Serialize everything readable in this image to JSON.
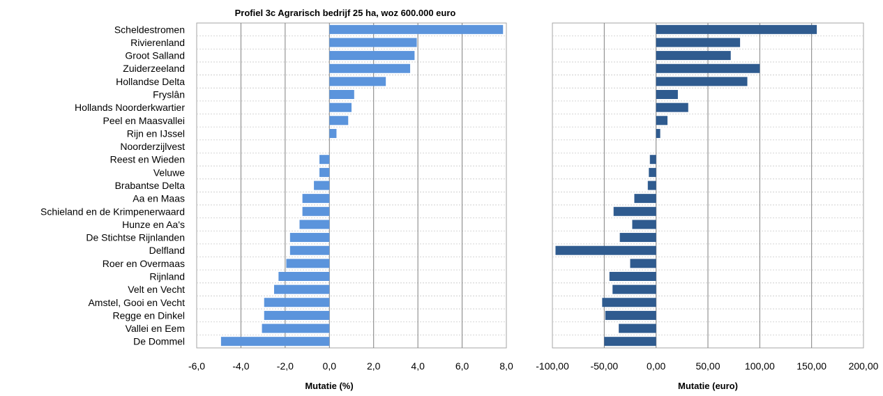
{
  "title": "Profiel 3c Agrarisch bedrijf 25 ha, woz 600.000 euro",
  "categories": [
    "Scheldestromen",
    "Rivierenland",
    "Groot Salland",
    "Zuiderzeeland",
    "Hollandse Delta",
    "Fryslân",
    "Hollands Noorderkwartier",
    "Peel en Maasvallei",
    "Rijn en IJssel",
    "Noorderzijlvest",
    "Reest en Wieden",
    "Veluwe",
    "Brabantse Delta",
    "Aa en Maas",
    "Schieland en de Krimpenerwaard",
    "Hunze en Aa's",
    "De Stichtse Rijnlanden",
    "Delfland",
    "Roer en Overmaas",
    "Rijnland",
    "Velt en Vecht",
    "Amstel, Gooi en Vecht",
    "Regge en Dinkel",
    "Vallei en Eem",
    "De Dommel"
  ],
  "chart_data": [
    {
      "type": "bar",
      "orientation": "horizontal",
      "xlabel": "Mutatie (%)",
      "xlim": [
        -6,
        8
      ],
      "ticks": [
        -6,
        -4,
        -2,
        0,
        2,
        4,
        6,
        8
      ],
      "tick_labels": [
        "-6,0",
        "-4,0",
        "-2,0",
        "0,0",
        "2,0",
        "4,0",
        "6,0",
        "8,0"
      ],
      "color": "#5b94dc",
      "values": [
        7.85,
        3.95,
        3.85,
        3.65,
        2.55,
        1.12,
        1.0,
        0.85,
        0.32,
        0.0,
        -0.45,
        -0.45,
        -0.7,
        -1.22,
        -1.22,
        -1.35,
        -1.78,
        -1.78,
        -1.95,
        -2.3,
        -2.5,
        -2.95,
        -2.95,
        -3.05,
        -4.9
      ],
      "grid": "vertical"
    },
    {
      "type": "bar",
      "orientation": "horizontal",
      "xlabel": "Mutatie (euro)",
      "xlim": [
        -100,
        200
      ],
      "ticks": [
        -100,
        -50,
        0,
        50,
        100,
        150,
        200
      ],
      "tick_labels": [
        "-100,00",
        "-50,00",
        "0,00",
        "50,00",
        "100,00",
        "150,00",
        "200,00"
      ],
      "color": "#2f5b8f",
      "values": [
        155,
        81,
        72,
        100,
        88,
        21,
        31,
        11,
        4,
        0,
        -6,
        -7,
        -8,
        -21,
        -41,
        -23,
        -35,
        -97,
        -25,
        -45,
        -42,
        -52,
        -49,
        -36,
        -50
      ],
      "grid": "vertical"
    }
  ]
}
